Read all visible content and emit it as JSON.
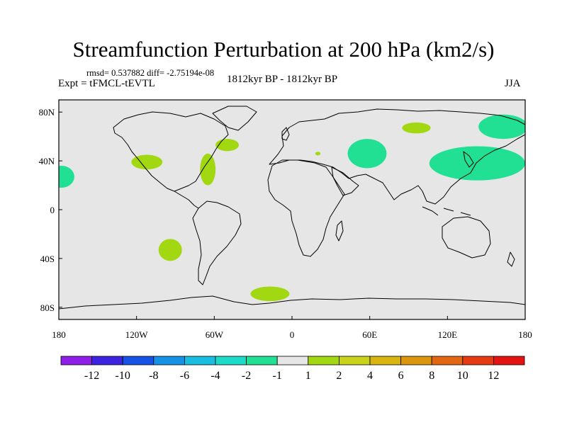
{
  "title": "Streamfunction Perturbation at 200 hPa (km2/s)",
  "stats": "rmsd= 0.537882 diff= -2.75194e-08",
  "experiment": "Expt = tFMCL-tEVTL",
  "period": "1812kyr BP - 1812kyr BP",
  "season": "JJA",
  "map": {
    "projection": "cylindrical equidistant",
    "lon_range": [
      -180,
      180
    ],
    "lat_range": [
      -90,
      90
    ],
    "lat_ticks": [
      {
        "value": 80,
        "label": "80N"
      },
      {
        "value": 40,
        "label": "40N"
      },
      {
        "value": 0,
        "label": "0"
      },
      {
        "value": -40,
        "label": "40S"
      },
      {
        "value": -80,
        "label": "80S"
      }
    ],
    "lon_ticks": [
      {
        "value": -180,
        "label": "180"
      },
      {
        "value": -120,
        "label": "120W"
      },
      {
        "value": -60,
        "label": "60W"
      },
      {
        "value": 0,
        "label": "0"
      },
      {
        "value": 60,
        "label": "60E"
      },
      {
        "value": 120,
        "label": "120E"
      },
      {
        "value": 180,
        "label": "180"
      }
    ],
    "ocean_color": "#e6e6e6",
    "coast_color": "#000000",
    "anomalies": [
      {
        "name": "n-pacific-east",
        "sign": "negative",
        "range": "-2 to -1",
        "color": "#21e093",
        "center_lon": -178,
        "center_lat": 27,
        "rad_lon": 10,
        "rad_lat": 9
      },
      {
        "name": "western-us",
        "sign": "positive",
        "range": "1 to 2",
        "color": "#a2d812",
        "center_lon": -112,
        "center_lat": 39,
        "rad_lon": 12,
        "rad_lat": 6
      },
      {
        "name": "western-atlantic",
        "sign": "positive",
        "range": "1 to 2",
        "color": "#a2d812",
        "center_lon": -65,
        "center_lat": 33,
        "rad_lon": 6,
        "rad_lat": 13
      },
      {
        "name": "north-atlantic",
        "sign": "positive",
        "range": "1 to 2",
        "color": "#a2d812",
        "center_lon": -50,
        "center_lat": 53,
        "rad_lon": 9,
        "rad_lat": 5
      },
      {
        "name": "europe",
        "sign": "positive",
        "range": "1 to 2",
        "color": "#a2d812",
        "center_lon": 20,
        "center_lat": 46,
        "rad_lon": 2,
        "rad_lat": 1.5
      },
      {
        "name": "central-asia",
        "sign": "negative",
        "range": "-2 to -1",
        "color": "#21e093",
        "center_lon": 58,
        "center_lat": 46,
        "rad_lon": 15,
        "rad_lat": 12
      },
      {
        "name": "siberia",
        "sign": "positive",
        "range": "1 to 2",
        "color": "#a2d812",
        "center_lon": 96,
        "center_lat": 67,
        "rad_lon": 11,
        "rad_lat": 4.5
      },
      {
        "name": "east-asia-pacific",
        "sign": "negative",
        "range": "-2 to -1",
        "color": "#21e093",
        "center_lon": 143,
        "center_lat": 38,
        "rad_lon": 37,
        "rad_lat": 14
      },
      {
        "name": "nw-pacific",
        "sign": "negative",
        "range": "-2 to -1",
        "color": "#21e093",
        "center_lon": 163,
        "center_lat": 68,
        "rad_lon": 19,
        "rad_lat": 10
      },
      {
        "name": "south-pacific",
        "sign": "positive",
        "range": "1 to 2",
        "color": "#a2d812",
        "center_lon": -94,
        "center_lat": -33,
        "rad_lon": 9,
        "rad_lat": 9
      },
      {
        "name": "south-atlantic-antarctic",
        "sign": "positive",
        "range": "1 to 2",
        "color": "#a2d812",
        "center_lon": -17,
        "center_lat": -69,
        "rad_lon": 15,
        "rad_lat": 6
      }
    ]
  },
  "colorbar": {
    "colors": [
      "#8f1fe8",
      "#3d23e0",
      "#1652e6",
      "#1591e6",
      "#18bde0",
      "#1cdbc8",
      "#21e093",
      "#e6e6e6",
      "#a2d812",
      "#c9d31a",
      "#dab50f",
      "#db960d",
      "#e36613",
      "#e63a12",
      "#e51212"
    ],
    "labels": [
      "-12",
      "-10",
      "-8",
      "-6",
      "-4",
      "-2",
      "-1",
      "1",
      "2",
      "4",
      "6",
      "8",
      "10",
      "12"
    ]
  }
}
